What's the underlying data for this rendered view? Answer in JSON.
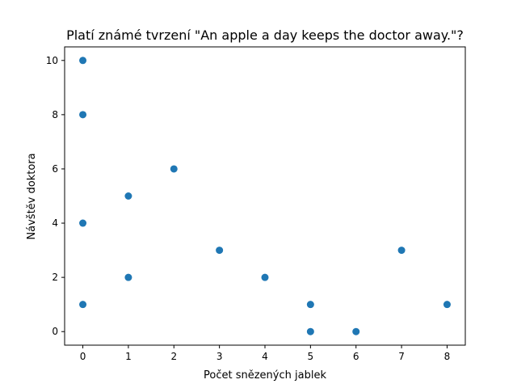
{
  "chart_data": {
    "type": "scatter",
    "title": "Platí známé tvrzení \"An apple a day keeps the doctor away.\"?",
    "xlabel": "Počet snězených jablek",
    "ylabel": "Návštěv doktora",
    "xlim": [
      -0.4,
      8.4
    ],
    "ylim": [
      -0.5,
      10.5
    ],
    "x_ticks": [
      0,
      1,
      2,
      3,
      4,
      5,
      6,
      7,
      8
    ],
    "y_ticks": [
      0,
      2,
      4,
      6,
      8,
      10
    ],
    "grid": false,
    "marker_color": "#1f77b4",
    "points": [
      {
        "x": 0,
        "y": 10
      },
      {
        "x": 0,
        "y": 8
      },
      {
        "x": 0,
        "y": 4
      },
      {
        "x": 0,
        "y": 1
      },
      {
        "x": 1,
        "y": 5
      },
      {
        "x": 1,
        "y": 2
      },
      {
        "x": 2,
        "y": 6
      },
      {
        "x": 3,
        "y": 3
      },
      {
        "x": 4,
        "y": 2
      },
      {
        "x": 5,
        "y": 1
      },
      {
        "x": 5,
        "y": 0
      },
      {
        "x": 6,
        "y": 0
      },
      {
        "x": 7,
        "y": 3
      },
      {
        "x": 8,
        "y": 1
      }
    ]
  }
}
